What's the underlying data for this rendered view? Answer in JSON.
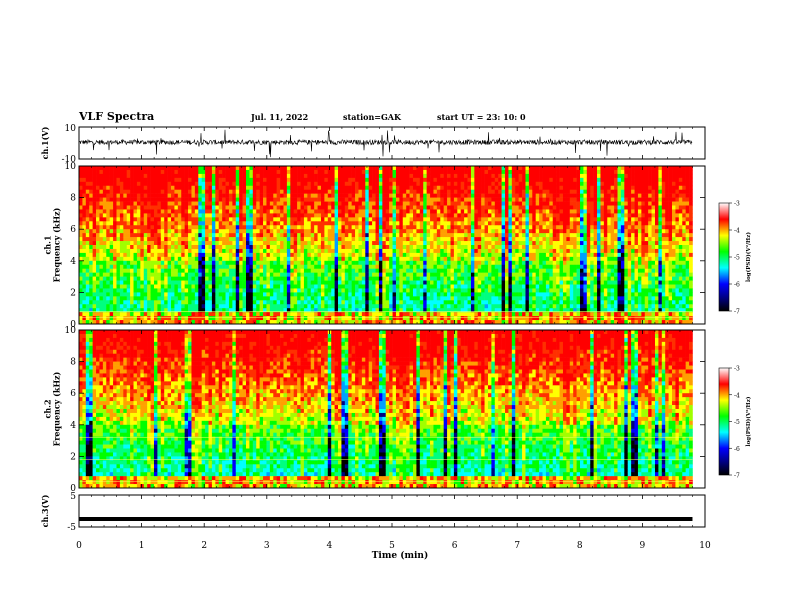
{
  "header": {
    "title": "VLF Spectra",
    "date": "Jul. 11, 2022",
    "station": "station=GAK",
    "start": "start UT = 23: 10: 0"
  },
  "chart_data": [
    {
      "type": "line",
      "name": "waveform-ch1",
      "ylabel": "ch.1(V)",
      "ylim": [
        -10,
        10
      ],
      "yticks": [
        "10",
        "-10"
      ],
      "xlim": [
        0,
        10
      ],
      "note": "dense noisy waveform around ~0 V with spikes up to about ±10 V, from 0 to ~9.8 min"
    },
    {
      "type": "heatmap",
      "name": "spectrogram-ch1",
      "ylabel": "ch.1\nFrequency (kHz)",
      "ylim": [
        0,
        10
      ],
      "yticks": [
        "0",
        "2",
        "4",
        "6",
        "8",
        "10"
      ],
      "xlim": [
        0,
        10
      ],
      "data_end_min": 9.8,
      "colorbar": {
        "label": "log(PSD)(V²/Hz)",
        "range": [
          -7,
          -3
        ],
        "ticks": [
          "-3",
          "-4",
          "-5",
          "-6",
          "-7"
        ]
      },
      "features": "bright red/yellow broadband noise above ~4 kHz with many vertical dark (low PSD) stripes; green/cyan band 1–4 kHz; strong horizontal lines below 1 kHz"
    },
    {
      "type": "heatmap",
      "name": "spectrogram-ch2",
      "ylabel": "ch.2\nFrequency (kHz)",
      "ylim": [
        0,
        10
      ],
      "yticks": [
        "0",
        "2",
        "4",
        "6",
        "8",
        "10"
      ],
      "xlim": [
        0,
        10
      ],
      "data_end_min": 9.8,
      "colorbar": {
        "label": "log(PSD)(V²/Hz)",
        "range": [
          -7,
          -3
        ],
        "ticks": [
          "-3",
          "-4",
          "-5",
          "-6",
          "-7"
        ]
      },
      "features": "similar to ch.1 with horizontal lines near 1.8 and 3.2 kHz"
    },
    {
      "type": "line",
      "name": "waveform-ch3",
      "ylabel": "ch.3(V)",
      "ylim": [
        -5,
        5
      ],
      "yticks": [
        "5",
        "-5"
      ],
      "xlim": [
        0,
        10
      ],
      "xticks": [
        "0",
        "1",
        "2",
        "3",
        "4",
        "5",
        "6",
        "7",
        "8",
        "9",
        "10"
      ],
      "xlabel": "Time (min)",
      "series": [
        {
          "x": [
            0,
            9.8
          ],
          "y": [
            -2.5,
            -2.5
          ]
        }
      ]
    }
  ],
  "colors": {
    "scale": [
      "#00004a",
      "#0000ff",
      "#00ffff",
      "#00ff00",
      "#ffff00",
      "#ff0000",
      "#ffffff"
    ]
  }
}
